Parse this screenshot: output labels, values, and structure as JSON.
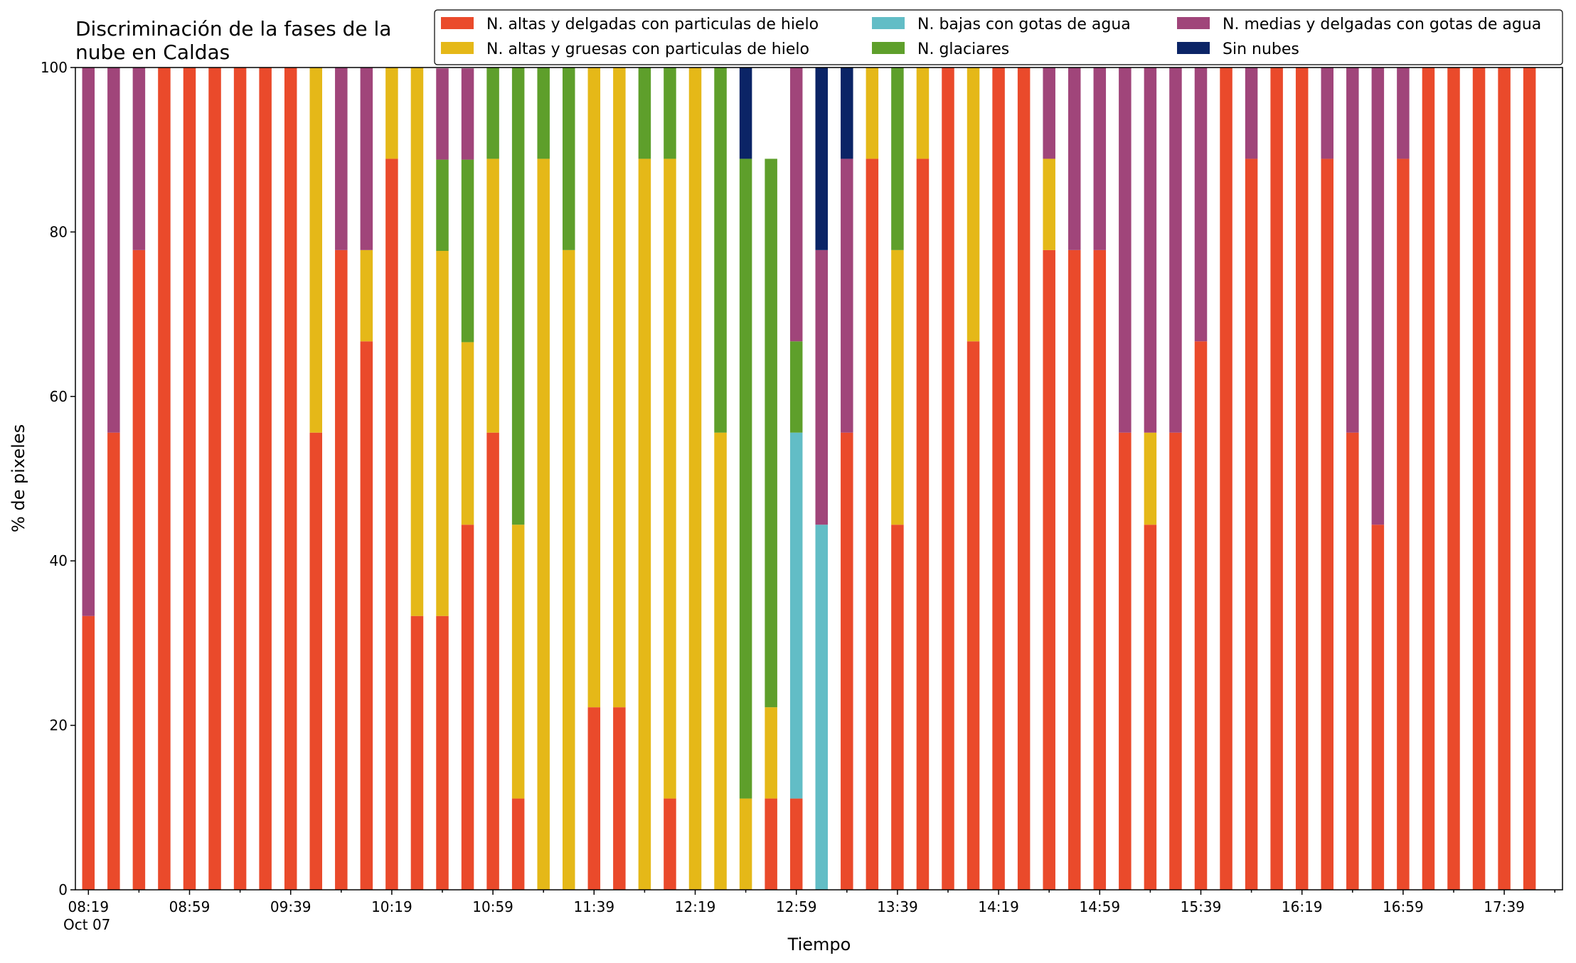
{
  "chart_data": {
    "type": "bar",
    "stacked": true,
    "title": "Discriminación de la fases de la nube en Caldas",
    "title_lines": [
      "Discriminación de la fases de la",
      "nube en Caldas"
    ],
    "xlabel": "Tiempo",
    "ylabel": "% de pixeles",
    "ylim": [
      0,
      100
    ],
    "yticks": [
      0,
      20,
      40,
      60,
      80,
      100
    ],
    "xtick_labels": [
      "08:19",
      "08:59",
      "09:39",
      "10:19",
      "10:59",
      "11:39",
      "12:19",
      "12:59",
      "13:39",
      "14:19",
      "14:59",
      "15:39",
      "16:19",
      "16:59",
      "17:39"
    ],
    "xtick_sublabel": "Oct 07",
    "x_start": "08:19",
    "x_step_minutes": 10,
    "grid": false,
    "legend_position": "top-right",
    "series": [
      {
        "name": "N. altas y delgadas con particulas de hielo",
        "color": "#ea4a2b",
        "values": [
          33.3,
          55.6,
          77.8,
          100,
          100,
          100,
          100,
          100,
          100,
          55.6,
          77.8,
          66.7,
          88.9,
          33.3,
          33.3,
          44.4,
          55.6,
          11.1,
          0,
          0,
          22.2,
          22.2,
          0,
          11.1,
          0,
          0,
          0,
          11.1,
          11.1,
          0,
          55.6,
          88.9,
          44.4,
          88.9,
          100,
          66.7,
          100,
          100,
          77.8,
          77.8,
          77.8,
          55.6,
          44.4,
          55.6,
          66.7,
          100,
          88.9,
          100,
          100,
          88.9,
          55.6,
          44.4,
          88.9,
          100,
          100,
          100,
          100,
          100
        ]
      },
      {
        "name": "N. altas y gruesas con particulas de hielo",
        "color": "#e5b818",
        "values": [
          0,
          0,
          0,
          0,
          0,
          0,
          0,
          0,
          0,
          44.4,
          0,
          11.1,
          11.1,
          66.7,
          44.4,
          22.2,
          33.3,
          33.3,
          88.9,
          77.8,
          77.8,
          77.8,
          88.9,
          77.8,
          100,
          55.6,
          11.1,
          11.1,
          0,
          0,
          0,
          11.1,
          33.4,
          11.1,
          0,
          33.3,
          0,
          0,
          11.1,
          0,
          0,
          0,
          11.2,
          0,
          0,
          0,
          0,
          0,
          0,
          0,
          0,
          0,
          0,
          0,
          0,
          0,
          0,
          0
        ]
      },
      {
        "name": "N. bajas con gotas de agua",
        "color": "#62bdc6",
        "values": [
          0,
          0,
          0,
          0,
          0,
          0,
          0,
          0,
          0,
          0,
          0,
          0,
          0,
          0,
          0,
          0,
          0,
          0,
          0,
          0,
          0,
          0,
          0,
          0,
          0,
          0,
          0,
          0,
          44.5,
          44.4,
          0,
          0,
          0,
          0,
          0,
          0,
          0,
          0,
          0,
          0,
          0,
          0,
          0,
          0,
          0,
          0,
          0,
          0,
          0,
          0,
          0,
          0,
          0,
          0,
          0,
          0,
          0,
          0
        ]
      },
      {
        "name": "N. glaciares",
        "color": "#5e9f2b",
        "values": [
          0,
          0,
          0,
          0,
          0,
          0,
          0,
          0,
          0,
          0,
          0,
          0,
          0,
          0,
          11.1,
          22.2,
          11.1,
          55.6,
          11.1,
          22.2,
          0,
          0,
          11.1,
          11.1,
          0,
          44.4,
          77.8,
          66.7,
          11.1,
          0,
          0,
          0,
          22.2,
          0,
          0,
          0,
          0,
          0,
          0,
          0,
          0,
          0,
          0,
          0,
          0,
          0,
          0,
          0,
          0,
          0,
          0,
          0,
          0,
          0,
          0,
          0,
          0,
          0
        ]
      },
      {
        "name": "N. medias y delgadas con gotas de agua",
        "color": "#a0457a",
        "values": [
          66.7,
          44.4,
          22.2,
          0,
          0,
          0,
          0,
          0,
          0,
          0,
          22.2,
          22.2,
          0,
          0,
          11.1,
          11.1,
          0,
          0,
          0,
          0,
          0,
          0,
          0,
          0,
          0,
          0,
          0,
          0,
          33.3,
          33.4,
          33.3,
          0,
          0,
          0,
          0,
          0,
          0,
          0,
          11.1,
          22.2,
          22.2,
          44.4,
          44.4,
          44.4,
          33.3,
          0,
          11.1,
          0,
          0,
          11.1,
          44.4,
          55.6,
          11.1,
          0,
          0,
          0,
          0,
          0
        ]
      },
      {
        "name": "Sin nubes",
        "color": "#0b2466",
        "values": [
          0,
          0,
          0,
          0,
          0,
          0,
          0,
          0,
          0,
          0,
          0,
          0,
          0,
          0,
          0,
          0,
          0,
          0,
          0,
          0,
          0,
          0,
          0,
          0,
          0,
          0,
          11.1,
          0,
          0,
          22.2,
          11.1,
          0,
          0,
          0,
          0,
          0,
          0,
          0,
          0,
          0,
          0,
          0,
          0,
          0,
          0,
          0,
          0,
          0,
          0,
          0,
          0,
          0,
          0,
          0,
          0,
          0,
          0,
          0
        ]
      }
    ]
  }
}
